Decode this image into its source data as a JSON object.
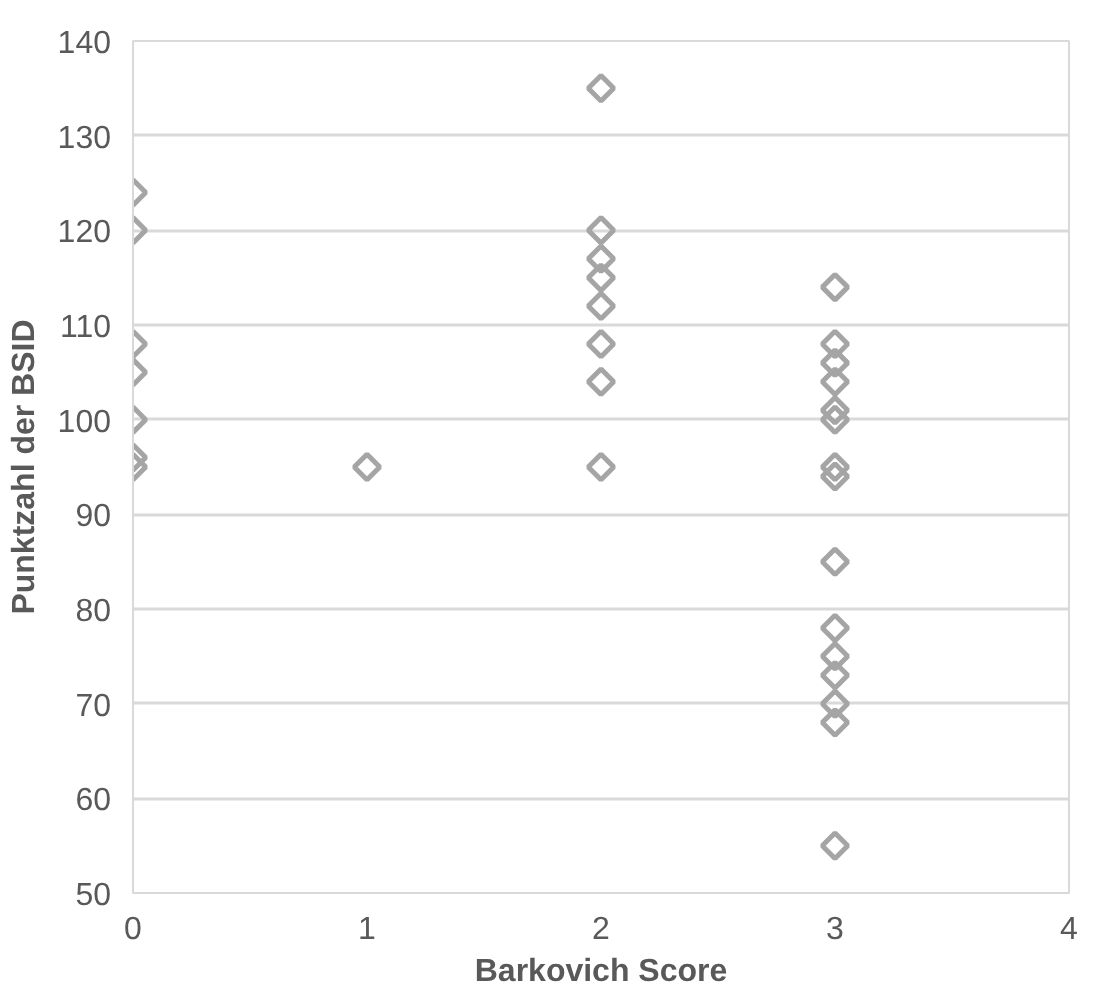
{
  "chart_data": {
    "type": "scatter",
    "xlabel": "Barkovich Score",
    "ylabel": "Punktzahl der BSID",
    "x": [
      0,
      0,
      0,
      0,
      0,
      0,
      0,
      1,
      2,
      2,
      2,
      2,
      2,
      2,
      2,
      2,
      3,
      3,
      3,
      3,
      3,
      3,
      3,
      3,
      3,
      3,
      3,
      3,
      3,
      3,
      3
    ],
    "values": [
      124,
      120,
      108,
      105,
      100,
      96,
      95,
      95,
      135,
      120,
      117,
      115,
      112,
      108,
      104,
      95,
      114,
      108,
      106,
      104,
      101,
      100,
      95,
      94,
      85,
      78,
      75,
      73,
      70,
      68,
      55
    ],
    "color": "#a5a5a5",
    "marker": "diamond",
    "xlim": [
      0,
      4
    ],
    "xticks": [
      0,
      1,
      2,
      3,
      4
    ],
    "ylim": [
      50,
      140
    ],
    "yticks": [
      50,
      60,
      70,
      80,
      90,
      100,
      110,
      120,
      130,
      140
    ],
    "grid": "y"
  }
}
